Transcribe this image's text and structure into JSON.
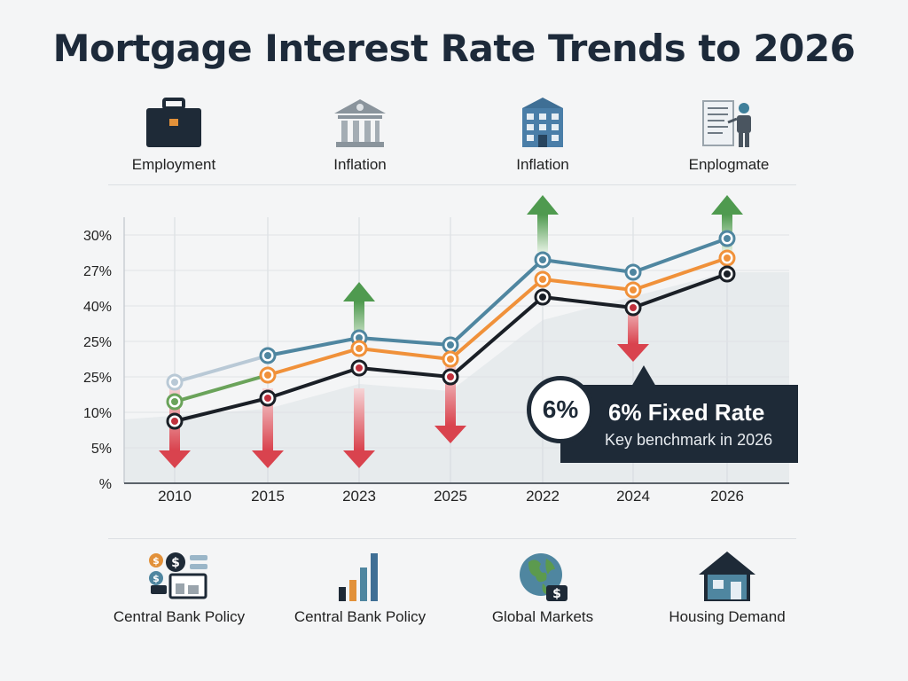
{
  "title": "Mortgage Interest Rate Trends to 2026",
  "top_factors": [
    {
      "label": "Employment",
      "icon": "briefcase-icon"
    },
    {
      "label": "Inflation",
      "icon": "bank-building-icon"
    },
    {
      "label": "Inflation",
      "icon": "office-building-icon"
    },
    {
      "label": "Enplogmate",
      "icon": "presenter-document-icon"
    }
  ],
  "bottom_factors": [
    {
      "label": "Central Bank Policy",
      "icon": "money-bills-icon"
    },
    {
      "label": "Central Bank Policy",
      "icon": "bar-chart-icon"
    },
    {
      "label": "Global Markets",
      "icon": "globe-dollar-icon"
    },
    {
      "label": "Housing Demand",
      "icon": "house-icon"
    }
  ],
  "callout": {
    "badge": "6%",
    "headline": "6% Fixed Rate",
    "subtext": "Key benchmark in 2026"
  },
  "chart_data": {
    "type": "line",
    "categories": [
      "2010",
      "2015",
      "2023",
      "2025",
      "2022",
      "2024",
      "2026"
    ],
    "y_tick_labels": [
      "%",
      "5%",
      "10%",
      "25%",
      "25%",
      "40%",
      "27%",
      "30%"
    ],
    "y_scale_note": "tick labels are non-monotonic; values below are read in tick-step units (0 = \"%\" baseline, 7 = top \"30%\" tick)",
    "series": [
      {
        "values": [
          2.85,
          3.6,
          4.1,
          3.9,
          6.3,
          5.95,
          6.9
        ],
        "color": "#4f86a0",
        "start_color": "#b9c9d6"
      },
      {
        "values": [
          2.3,
          3.05,
          3.8,
          3.5,
          5.75,
          5.45,
          6.35
        ],
        "color": "#f0913a",
        "start_color": "#6aa35a"
      },
      {
        "values": [
          1.75,
          2.4,
          3.25,
          3.0,
          5.25,
          4.95,
          5.9
        ],
        "color": "#1a1f26",
        "start_color": "#1a1f26"
      }
    ],
    "arrows": [
      {
        "category": "2010",
        "direction": "down"
      },
      {
        "category": "2015",
        "direction": "down"
      },
      {
        "category": "2023",
        "direction": "up"
      },
      {
        "category": "2023",
        "direction": "down"
      },
      {
        "category": "2025",
        "direction": "down"
      },
      {
        "category": "2022",
        "direction": "up"
      },
      {
        "category": "2024",
        "direction": "down"
      },
      {
        "category": "2026",
        "direction": "up"
      }
    ],
    "grid": true,
    "colors": {
      "up_arrow": "#4f9a4f",
      "down_arrow": "#d9434e",
      "marker_ring_dark": "#c0303c"
    }
  }
}
